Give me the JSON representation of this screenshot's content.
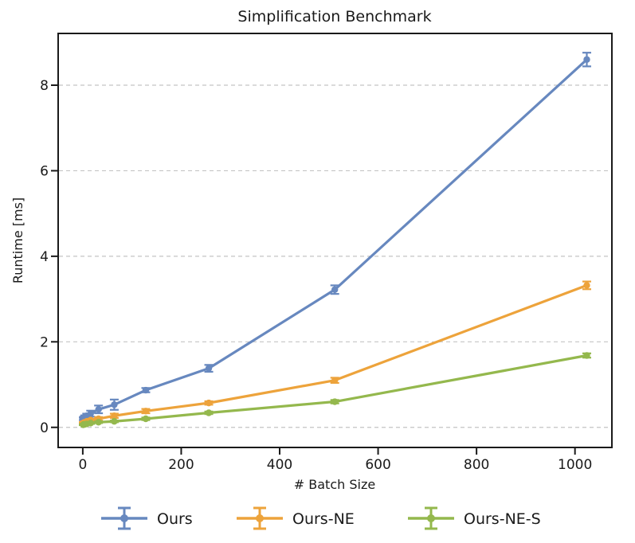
{
  "chart_data": {
    "type": "line",
    "title": "Simplification Benchmark",
    "xlabel": "# Batch Size",
    "ylabel": "Runtime [ms]",
    "x": [
      1,
      2,
      4,
      8,
      16,
      32,
      64,
      128,
      256,
      512,
      1024
    ],
    "series": [
      {
        "name": "Ours",
        "color": "#6788bf",
        "values": [
          0.2,
          0.22,
          0.24,
          0.27,
          0.32,
          0.42,
          0.53,
          0.87,
          1.38,
          3.22,
          8.6
        ],
        "yerr": [
          0.03,
          0.03,
          0.04,
          0.05,
          0.07,
          0.09,
          0.12,
          0.05,
          0.08,
          0.1,
          0.16
        ]
      },
      {
        "name": "Ours-NE",
        "color": "#eda33b",
        "values": [
          0.1,
          0.11,
          0.12,
          0.14,
          0.17,
          0.2,
          0.27,
          0.38,
          0.57,
          1.1,
          3.32
        ],
        "yerr": [
          0.02,
          0.02,
          0.02,
          0.02,
          0.03,
          0.04,
          0.05,
          0.05,
          0.04,
          0.06,
          0.09
        ]
      },
      {
        "name": "Ours-NE-S",
        "color": "#94b84d",
        "values": [
          0.06,
          0.07,
          0.07,
          0.08,
          0.1,
          0.12,
          0.14,
          0.2,
          0.34,
          0.6,
          1.68
        ],
        "yerr": [
          0.01,
          0.01,
          0.01,
          0.02,
          0.02,
          0.02,
          0.02,
          0.03,
          0.03,
          0.04,
          0.05
        ]
      }
    ],
    "xticks": [
      0,
      200,
      400,
      600,
      800,
      1000
    ],
    "yticks": [
      0,
      2,
      4,
      6,
      8
    ],
    "xlim": [
      -50,
      1075
    ],
    "ylim": [
      -0.47,
      9.21
    ],
    "grid": "horizontal-dashed",
    "grid_color": "#c4c4c4",
    "axis_color": "#1a1a1a",
    "legend_position": "below",
    "legend_labels": [
      "Ours",
      "Ours-NE",
      "Ours-NE-S"
    ]
  }
}
